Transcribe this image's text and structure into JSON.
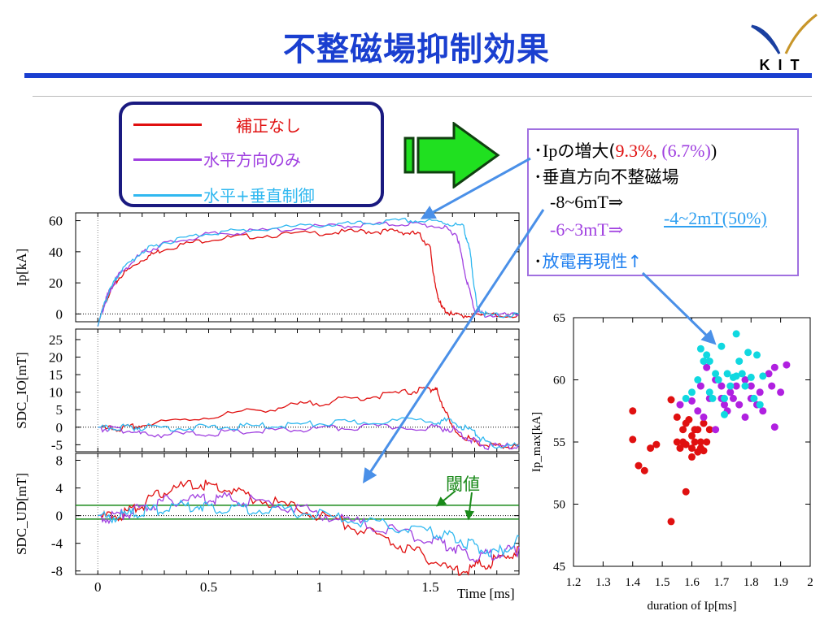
{
  "title": "不整磁場抑制効果",
  "logo": {
    "text": "KIT",
    "colors": {
      "left": "#1a3fa0",
      "right": "#c8962a"
    }
  },
  "legend": {
    "items": [
      {
        "label": "補正なし",
        "color": "#e01010"
      },
      {
        "label": "水平方向のみ",
        "color": "#a040e0"
      },
      {
        "label": "水平+垂直制御",
        "color": "#30b8f0"
      }
    ]
  },
  "arrow": {
    "fill": "#20e020",
    "stroke": "#104010"
  },
  "info": {
    "line1_prefix": "･Ip",
    "line1_jp": "の増大(",
    "line1_red": "9.3%,",
    "line1_purple": " (6.7%)",
    "line1_close": ")",
    "line2": "･垂直方向不整磁場",
    "line3": "-8~6mT⇒",
    "line4": "-6~3mT⇒",
    "line4_right": "-4~2mT(50%)",
    "line5_prefix": "･",
    "line5": "放電再現性↑"
  },
  "threshold_label": "閾値",
  "time_label": "Time [ms]",
  "chart_data": [
    {
      "type": "line",
      "ylabel": "Ip[kA]",
      "ylim": [
        -5,
        65
      ],
      "yticks": [
        "0",
        "20",
        "40",
        "60"
      ],
      "xlim": [
        -0.1,
        1.9
      ],
      "series": [
        {
          "color": "#e01010",
          "x": [
            0,
            0.02,
            0.05,
            0.1,
            0.2,
            0.3,
            0.5,
            0.7,
            1.0,
            1.2,
            1.35,
            1.45,
            1.5,
            1.52,
            1.55,
            1.6,
            1.7,
            1.9
          ],
          "y": [
            -8,
            3,
            14,
            25,
            36,
            43,
            49,
            51,
            53,
            54,
            54,
            52,
            43,
            20,
            5,
            0,
            0,
            0
          ]
        },
        {
          "color": "#a040e0",
          "x": [
            0,
            0.02,
            0.05,
            0.1,
            0.2,
            0.3,
            0.5,
            0.7,
            1.0,
            1.2,
            1.4,
            1.55,
            1.62,
            1.66,
            1.7,
            1.75,
            1.9
          ],
          "y": [
            -8,
            3,
            15,
            27,
            40,
            46,
            52,
            54,
            57,
            58,
            59,
            57,
            52,
            25,
            3,
            0,
            0
          ]
        },
        {
          "color": "#30b8f0",
          "x": [
            0,
            0.02,
            0.05,
            0.1,
            0.2,
            0.3,
            0.5,
            0.7,
            1.0,
            1.2,
            1.4,
            1.55,
            1.65,
            1.68,
            1.71,
            1.76,
            1.9
          ],
          "y": [
            -8,
            3,
            15,
            28,
            41,
            47,
            53,
            55,
            58,
            59,
            61,
            60,
            57,
            40,
            5,
            0,
            0
          ]
        }
      ]
    },
    {
      "type": "line",
      "ylabel": "SDC_IO[mT]",
      "ylim": [
        -7,
        28
      ],
      "yticks": [
        "-5",
        "0",
        "5",
        "10",
        "15",
        "20",
        "25"
      ],
      "xlim": [
        -0.1,
        1.9
      ],
      "series": [
        {
          "color": "#e01010",
          "x": [
            0,
            0.1,
            0.2,
            0.5,
            0.8,
            1.0,
            1.2,
            1.4,
            1.5,
            1.53,
            1.6,
            1.7,
            1.8,
            1.9
          ],
          "y": [
            0,
            0,
            1,
            3.5,
            6,
            7.5,
            9,
            10.5,
            11.5,
            11,
            0,
            -4,
            -5,
            -5
          ]
        },
        {
          "color": "#a040e0",
          "x": [
            0,
            0.1,
            0.2,
            0.4,
            0.6,
            0.8,
            1.0,
            1.2,
            1.5,
            1.6,
            1.68,
            1.75,
            1.9
          ],
          "y": [
            0,
            0,
            -1.5,
            -1.5,
            -1,
            -0.5,
            0,
            0.5,
            0.5,
            0,
            -3,
            -5,
            -5
          ]
        },
        {
          "color": "#30b8f0",
          "x": [
            0,
            0.1,
            0.2,
            0.4,
            0.6,
            0.8,
            1.0,
            1.2,
            1.5,
            1.6,
            1.7,
            1.76,
            1.9
          ],
          "y": [
            0,
            0.5,
            0.5,
            0.3,
            0.5,
            1,
            1.5,
            2,
            2.5,
            2,
            -1,
            -4.5,
            -5
          ]
        }
      ]
    },
    {
      "type": "line",
      "ylabel": "SDC_UD[mT]",
      "ylim": [
        -8.5,
        9
      ],
      "yticks": [
        "-8",
        "-4",
        "0",
        "4",
        "8"
      ],
      "xlim": [
        -0.1,
        1.9
      ],
      "x_ticks": [
        "0",
        "0.5",
        "1",
        "1.5"
      ],
      "threshold_values": [
        1.5,
        -0.5
      ],
      "series": [
        {
          "color": "#e01010",
          "x": [
            0,
            0.1,
            0.2,
            0.3,
            0.45,
            0.55,
            0.7,
            0.9,
            1.1,
            1.3,
            1.45,
            1.6,
            1.7,
            1.8,
            1.9
          ],
          "y": [
            0,
            0.5,
            2,
            4,
            5,
            4.5,
            3,
            1.5,
            -0.5,
            -3,
            -5,
            -7.5,
            -7,
            -6,
            -4.5
          ]
        },
        {
          "color": "#a040e0",
          "x": [
            0,
            0.1,
            0.2,
            0.3,
            0.45,
            0.55,
            0.7,
            0.9,
            1.1,
            1.3,
            1.5,
            1.6,
            1.7,
            1.8,
            1.9
          ],
          "y": [
            0,
            0.5,
            1.5,
            2.5,
            3,
            3,
            2.5,
            1.5,
            0,
            -1.5,
            -3,
            -4,
            -5.5,
            -5,
            -4.5
          ]
        },
        {
          "color": "#30b8f0",
          "x": [
            0,
            0.1,
            0.2,
            0.3,
            0.45,
            0.55,
            0.7,
            0.9,
            1.1,
            1.3,
            1.5,
            1.6,
            1.7,
            1.8,
            1.9
          ],
          "y": [
            0,
            0.5,
            1,
            1.5,
            2,
            1.5,
            1.5,
            1,
            0,
            -1,
            -2,
            -2.5,
            -4,
            -5,
            -3
          ]
        }
      ]
    },
    {
      "type": "scatter",
      "xlabel": "duration of Ip[ms]",
      "ylabel": "Ip_max[kA]",
      "xlim": [
        1.2,
        2
      ],
      "ylim": [
        45,
        65
      ],
      "x_ticks": [
        "1.2",
        "1.3",
        "1.4",
        "1.5",
        "1.6",
        "1.7",
        "1.8",
        "1.9",
        "2"
      ],
      "y_ticks": [
        "45",
        "50",
        "55",
        "60",
        "65"
      ],
      "series": [
        {
          "color": "#e01010",
          "points": [
            [
              1.4,
              57.5
            ],
            [
              1.4,
              55.2
            ],
            [
              1.42,
              53.1
            ],
            [
              1.44,
              52.7
            ],
            [
              1.46,
              54.5
            ],
            [
              1.48,
              54.8
            ],
            [
              1.53,
              58.4
            ],
            [
              1.53,
              48.6
            ],
            [
              1.55,
              57
            ],
            [
              1.55,
              55
            ],
            [
              1.56,
              54.5
            ],
            [
              1.57,
              56
            ],
            [
              1.57,
              55
            ],
            [
              1.58,
              56.5
            ],
            [
              1.58,
              54.8
            ],
            [
              1.58,
              51
            ],
            [
              1.59,
              56.8
            ],
            [
              1.6,
              55.5
            ],
            [
              1.6,
              54.5
            ],
            [
              1.6,
              53.8
            ],
            [
              1.61,
              56
            ],
            [
              1.61,
              55
            ],
            [
              1.62,
              56
            ],
            [
              1.62,
              54.2
            ],
            [
              1.63,
              55
            ],
            [
              1.63,
              54.5
            ],
            [
              1.64,
              56.5
            ],
            [
              1.64,
              54.3
            ],
            [
              1.65,
              55
            ],
            [
              1.66,
              56
            ]
          ]
        },
        {
          "color": "#b020e0",
          "points": [
            [
              1.56,
              58
            ],
            [
              1.6,
              58.3
            ],
            [
              1.62,
              57.5
            ],
            [
              1.64,
              57
            ],
            [
              1.66,
              58.5
            ],
            [
              1.68,
              56
            ],
            [
              1.7,
              59.5
            ],
            [
              1.71,
              58
            ],
            [
              1.72,
              57.5
            ],
            [
              1.73,
              59
            ],
            [
              1.74,
              58.5
            ],
            [
              1.75,
              59.5
            ],
            [
              1.76,
              58
            ],
            [
              1.78,
              57
            ],
            [
              1.78,
              60
            ],
            [
              1.8,
              59.5
            ],
            [
              1.8,
              58.5
            ],
            [
              1.82,
              58
            ],
            [
              1.83,
              59
            ],
            [
              1.84,
              57.5
            ],
            [
              1.86,
              60.5
            ],
            [
              1.87,
              59.5
            ],
            [
              1.88,
              61
            ],
            [
              1.88,
              56.2
            ],
            [
              1.9,
              59
            ],
            [
              1.92,
              61.2
            ],
            [
              1.63,
              59.5
            ],
            [
              1.65,
              61
            ],
            [
              1.68,
              60
            ],
            [
              1.7,
              58.5
            ]
          ]
        },
        {
          "color": "#10d8e0",
          "points": [
            [
              1.58,
              58.5
            ],
            [
              1.6,
              59
            ],
            [
              1.62,
              60
            ],
            [
              1.63,
              62.5
            ],
            [
              1.64,
              61.5
            ],
            [
              1.65,
              62
            ],
            [
              1.66,
              59
            ],
            [
              1.67,
              58.5
            ],
            [
              1.68,
              60.5
            ],
            [
              1.69,
              60
            ],
            [
              1.7,
              62.7
            ],
            [
              1.71,
              58.5
            ],
            [
              1.72,
              60.5
            ],
            [
              1.73,
              59.5
            ],
            [
              1.74,
              60.2
            ],
            [
              1.75,
              63.7
            ],
            [
              1.75,
              60.3
            ],
            [
              1.76,
              61.5
            ],
            [
              1.77,
              60.5
            ],
            [
              1.78,
              59.5
            ],
            [
              1.79,
              62.2
            ],
            [
              1.8,
              60.2
            ],
            [
              1.81,
              58.5
            ],
            [
              1.82,
              62
            ],
            [
              1.83,
              58
            ],
            [
              1.84,
              60.3
            ],
            [
              1.66,
              61.5
            ],
            [
              1.71,
              57.2
            ]
          ]
        }
      ]
    }
  ]
}
